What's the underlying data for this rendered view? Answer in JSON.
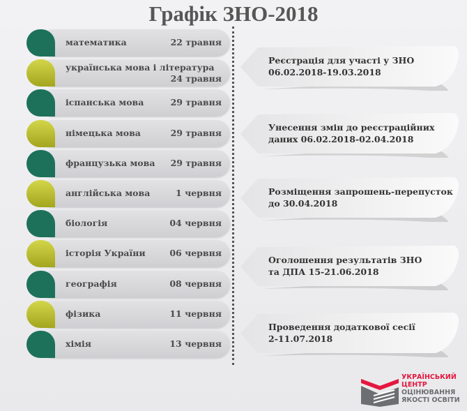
{
  "title": "Графік ЗНО-2018",
  "colors": {
    "teal": "#1d715a",
    "lime": "#b5b92c",
    "logo_red": "#e4173f",
    "logo_gray": "#6d6e71"
  },
  "exams": [
    {
      "subject": "математика",
      "date": "22 травня",
      "color": "teal"
    },
    {
      "subject": "українська мова і література",
      "date": "24 травня",
      "color": "lime"
    },
    {
      "subject": "іспанська мова",
      "date": "29 травня",
      "color": "teal"
    },
    {
      "subject": "німецька мова",
      "date": "29 травня",
      "color": "lime"
    },
    {
      "subject": "французька мова",
      "date": "29 травня",
      "color": "teal"
    },
    {
      "subject": "англійська мова",
      "date": "1 червня",
      "color": "lime"
    },
    {
      "subject": "біологія",
      "date": "04 червня",
      "color": "teal"
    },
    {
      "subject": "історія України",
      "date": "06 червня",
      "color": "lime"
    },
    {
      "subject": "географія",
      "date": "08 червня",
      "color": "teal"
    },
    {
      "subject": "фізика",
      "date": "11 червня",
      "color": "lime"
    },
    {
      "subject": "хімія",
      "date": "13 червня",
      "color": "teal"
    }
  ],
  "milestones": [
    {
      "line1": "Реєстрація для участі у ЗНО",
      "line2": "06.02.2018-19.03.2018"
    },
    {
      "line1": "Унесення змін до реєстраційних",
      "line2": "даних 06.02.2018-02.04.2018"
    },
    {
      "line1": "Розміщення запрошень-перепусток",
      "line2": "до 30.04.2018"
    },
    {
      "line1": "Оголошення результатів ЗНО",
      "line2": "та ДПА 15-21.06.2018"
    },
    {
      "line1": "Проведення додаткової сесії",
      "line2": "2-11.07.2018"
    }
  ],
  "logo": {
    "line1": "УКРАЇНСЬКИЙ",
    "line2": "ЦЕНТР",
    "line3": "ОЦІНЮВАННЯ",
    "line4": "ЯКОСТІ ОСВІТИ"
  }
}
